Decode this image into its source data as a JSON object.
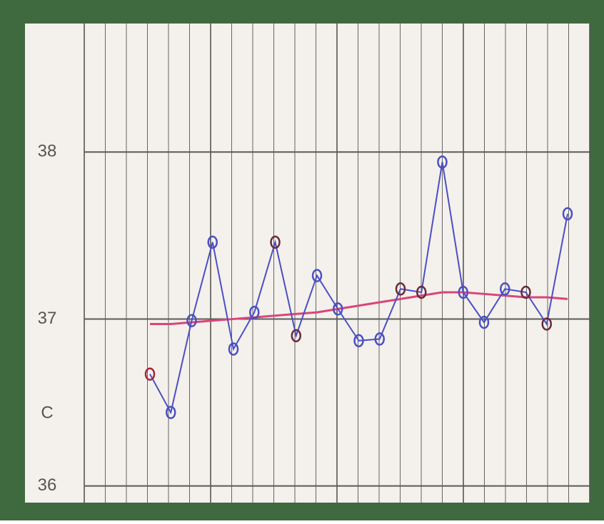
{
  "chart_data": {
    "type": "line",
    "ylabel": "C",
    "categories": [
      null,
      null,
      null,
      null,
      null,
      null,
      null,
      null,
      null,
      null,
      null,
      null,
      null,
      null,
      null,
      null,
      null,
      null,
      null,
      null,
      null
    ],
    "series": [
      {
        "color": "#4b4fc4",
        "values": [
          36.67,
          36.44,
          36.99,
          37.46,
          36.82,
          37.04,
          37.46,
          36.9,
          37.26,
          37.06,
          36.87,
          36.88,
          37.18,
          37.16,
          37.94,
          37.16,
          36.98,
          37.18,
          37.16,
          36.97,
          37.63
        ],
        "marker_colors": [
          "#a8243a",
          "#4b4fc4",
          "#4b4fc4",
          "#4b4fc4",
          "#4b4fc4",
          "#4b4fc4",
          "#6a2a3a",
          "#6a2a3a",
          "#4b4fc4",
          "#4b4fc4",
          "#4b4fc4",
          "#4b4fc4",
          "#6a2a3a",
          "#6a2a3a",
          "#4b4fc4",
          "#4b4fc4",
          "#4b4fc4",
          "#4b4fc4",
          "#6a2a3a",
          "#6a2a3a",
          "#4b4fc4"
        ]
      },
      {
        "color": "#d9457a",
        "values": [
          36.97,
          36.97,
          36.98,
          36.99,
          37.0,
          37.01,
          37.02,
          37.03,
          37.04,
          37.06,
          37.08,
          37.1,
          37.12,
          37.14,
          37.16,
          37.16,
          37.15,
          37.14,
          37.13,
          37.13,
          37.12
        ]
      }
    ],
    "ylim": [
      35.9,
      38.77
    ],
    "yticks": [
      36,
      37,
      38
    ],
    "grid": true
  }
}
